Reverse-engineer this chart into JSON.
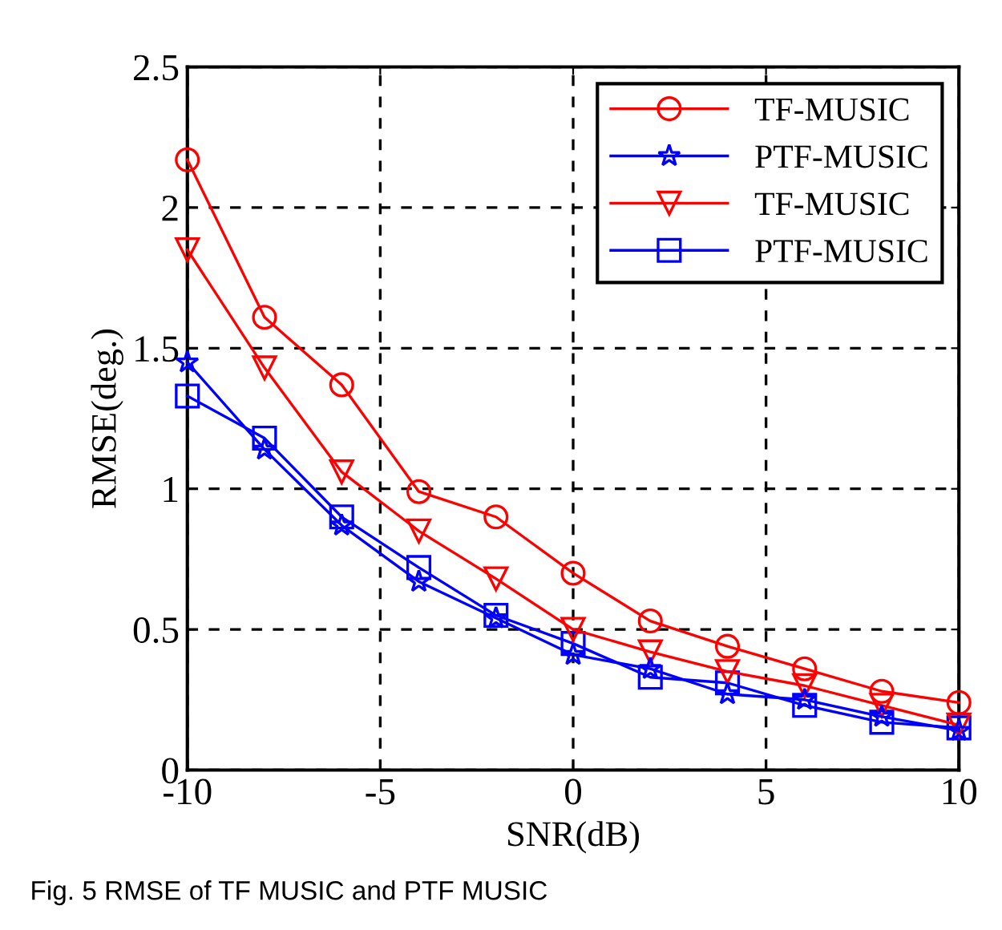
{
  "chart_data": {
    "type": "line",
    "xlabel": "SNR(dB)",
    "ylabel": "RMSE(deg.)",
    "x": [
      -10,
      -8,
      -6,
      -4,
      -2,
      0,
      2,
      4,
      6,
      8,
      10
    ],
    "series": [
      {
        "name": "TF-MUSIC",
        "color": "#ff0000",
        "marker": "circle",
        "values": [
          2.17,
          1.61,
          1.37,
          0.99,
          0.9,
          0.7,
          0.53,
          0.44,
          0.36,
          0.28,
          0.24
        ]
      },
      {
        "name": "PTF-MUSIC",
        "color": "#0000ff",
        "marker": "star",
        "values": [
          1.45,
          1.14,
          0.87,
          0.67,
          0.54,
          0.41,
          0.36,
          0.27,
          0.25,
          0.19,
          0.14
        ]
      },
      {
        "name": "TF-MUSIC",
        "color": "#ff0000",
        "marker": "triangle",
        "values": [
          1.85,
          1.43,
          1.06,
          0.85,
          0.68,
          0.5,
          0.42,
          0.35,
          0.3,
          0.23,
          0.16
        ]
      },
      {
        "name": "PTF-MUSIC",
        "color": "#0000ff",
        "marker": "square",
        "values": [
          1.33,
          1.18,
          0.9,
          0.72,
          0.55,
          0.45,
          0.33,
          0.31,
          0.23,
          0.17,
          0.15
        ]
      }
    ],
    "xlim": [
      -10,
      10
    ],
    "xticks": [
      -10,
      -5,
      0,
      5,
      10
    ],
    "ylim": [
      0,
      2.5
    ],
    "yticks": [
      0,
      0.5,
      1,
      1.5,
      2,
      2.5
    ],
    "grid": true,
    "legend": "top right",
    "line_style": "solid",
    "annotations": [
      "Fig. 5 RMSE of TF MUSIC and PTF MUSIC"
    ]
  }
}
